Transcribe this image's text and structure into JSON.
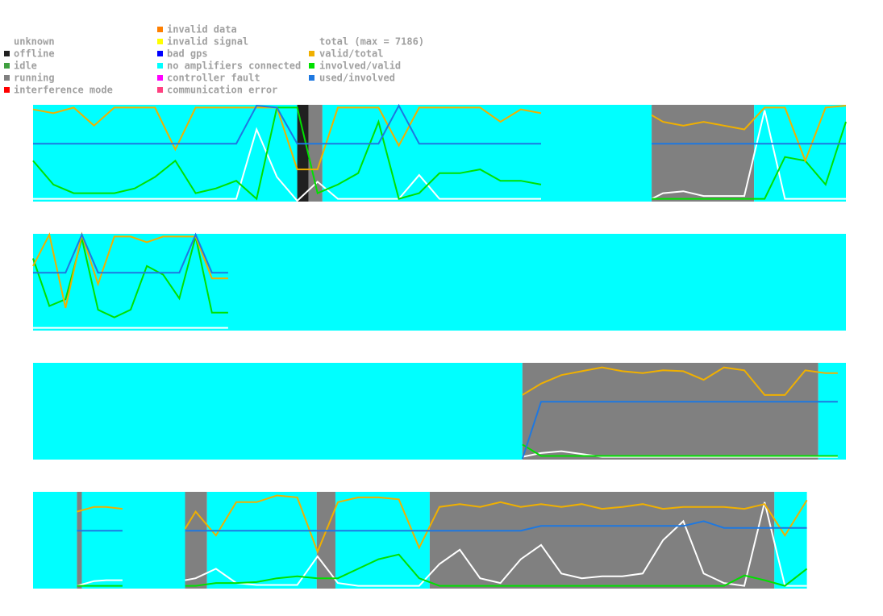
{
  "legend": {
    "status": [
      {
        "label": "unknown",
        "color": "#ffffff"
      },
      {
        "label": "offline",
        "color": "#202020"
      },
      {
        "label": "idle",
        "color": "#40a040"
      },
      {
        "label": "running",
        "color": "#808080"
      },
      {
        "label": "interference mode",
        "color": "#ff0000"
      },
      {
        "label": "invalid data",
        "color": "#ff7f00"
      },
      {
        "label": "invalid signal",
        "color": "#ffff00"
      },
      {
        "label": "bad gps",
        "color": "#0000ff"
      },
      {
        "label": "no amplifiers connected",
        "color": "#00ffff"
      },
      {
        "label": "controller fault",
        "color": "#ff00ff"
      },
      {
        "label": "communication error",
        "color": "#ff4080"
      }
    ],
    "metrics": [
      {
        "label": "total (max = 7186)",
        "color": "#ffffff"
      },
      {
        "label": "valid/total",
        "color": "#f0b000"
      },
      {
        "label": "involved/valid",
        "color": "#00e000"
      },
      {
        "label": "used/involved",
        "color": "#1e78e0"
      }
    ]
  },
  "strips": [
    {
      "segments": [
        {
          "status": 8,
          "start": 0,
          "end": 32.5
        },
        {
          "status": 1,
          "start": 32.5,
          "end": 33.9
        },
        {
          "status": 3,
          "start": 33.9,
          "end": 35.6
        },
        {
          "status": 8,
          "start": 35.6,
          "end": 76.1
        },
        {
          "status": 3,
          "start": 76.1,
          "end": 88.7
        },
        {
          "status": 8,
          "start": 88.7,
          "end": 100
        }
      ],
      "t": [
        0,
        2.5,
        5,
        7.5,
        10,
        12.5,
        15,
        17.5,
        20,
        22.5,
        25,
        27.5,
        30,
        32.5,
        35,
        37.5,
        40,
        42.5,
        45,
        47.5,
        50,
        52.5,
        55,
        57.5,
        60,
        62.5,
        70,
        76.1,
        77.5,
        80,
        82.5,
        85,
        87.5,
        90,
        92.5,
        95,
        97.5,
        100
      ],
      "series": [
        [
          0.02,
          0.02,
          0.02,
          0.02,
          0.02,
          0.02,
          0.02,
          0.02,
          0.02,
          0.02,
          0.02,
          0.75,
          0.25,
          0,
          0.2,
          0.02,
          0.02,
          0.02,
          0.02,
          0.27,
          0.02,
          0.02,
          0.02,
          0.02,
          0.02,
          0.02,
          null,
          0.02,
          0.08,
          0.1,
          0.05,
          0.05,
          0.05,
          0.95,
          0.02,
          0.02,
          0.02,
          0.02
        ],
        [
          0.96,
          0.92,
          0.98,
          0.79,
          0.98,
          0.98,
          0.98,
          0.54,
          0.98,
          0.98,
          0.98,
          0.98,
          0.98,
          0.33,
          0.33,
          0.98,
          0.98,
          0.98,
          0.58,
          0.98,
          0.98,
          0.98,
          0.98,
          0.83,
          0.96,
          0.92,
          null,
          0.9,
          0.83,
          0.79,
          0.83,
          0.79,
          0.75,
          0.98,
          0.98,
          0.42,
          0.98,
          1
        ],
        [
          0.42,
          0.17,
          0.08,
          0.08,
          0.08,
          0.13,
          0.25,
          0.42,
          0.08,
          0.13,
          0.21,
          0.02,
          0.98,
          0.98,
          0.08,
          0.17,
          0.29,
          0.83,
          0.02,
          0.08,
          0.29,
          0.29,
          0.33,
          0.21,
          0.21,
          0.17,
          null,
          0.02,
          0.02,
          0.02,
          0.02,
          0.02,
          0.02,
          0.02,
          0.46,
          0.42,
          0.17,
          0.83
        ],
        [
          0.6,
          0.6,
          0.6,
          0.6,
          0.6,
          0.6,
          0.6,
          0.6,
          0.6,
          0.6,
          0.6,
          1,
          0.98,
          0.6,
          0.6,
          0.6,
          0.6,
          0.6,
          1,
          0.6,
          0.6,
          0.6,
          0.6,
          0.6,
          0.6,
          0.6,
          null,
          0.6,
          0.6,
          0.6,
          0.6,
          0.6,
          0.6,
          0.6,
          0.6,
          0.6,
          0.6,
          0.6
        ]
      ]
    },
    {
      "segments": [
        {
          "status": 8,
          "start": 0,
          "end": 100
        }
      ],
      "t": [
        0,
        2,
        4,
        6,
        8,
        10,
        12,
        14,
        16,
        18,
        20,
        22,
        24
      ],
      "series": [
        [
          0.02,
          0.02,
          0.02,
          0.02,
          0.02,
          0.02,
          0.02,
          0.02,
          0.02,
          0.02,
          0.02,
          0.02,
          0.02
        ],
        [
          0.67,
          1,
          0.23,
          1,
          0.48,
          0.98,
          0.98,
          0.92,
          0.98,
          0.98,
          0.98,
          0.54,
          0.54
        ],
        [
          0.75,
          0.25,
          0.32,
          0.96,
          0.21,
          0.13,
          0.21,
          0.67,
          0.58,
          0.33,
          0.98,
          0.18,
          0.18
        ],
        [
          0.6,
          0.6,
          0.6,
          1,
          0.6,
          0.6,
          0.6,
          0.6,
          0.6,
          0.6,
          1,
          0.6,
          0.6
        ]
      ]
    },
    {
      "segments": [
        {
          "status": 8,
          "start": 0,
          "end": 60.2
        },
        {
          "status": 3,
          "start": 60.2,
          "end": 96.6
        },
        {
          "status": 8,
          "start": 96.6,
          "end": 100
        }
      ],
      "t": [
        60.2,
        62.5,
        65,
        67.5,
        70,
        72.5,
        75,
        77.5,
        80,
        82.5,
        85,
        87.5,
        90,
        92.5,
        95,
        97.5,
        99
      ],
      "series": [
        [
          0.02,
          0.06,
          0.08,
          0.05,
          0.02,
          0.02,
          0.02,
          0.02,
          0.02,
          0.02,
          0.02,
          0.02,
          0.02,
          0.02,
          0.02,
          0.02,
          0.02
        ],
        [
          0.67,
          0.79,
          0.88,
          0.92,
          0.96,
          0.92,
          0.9,
          0.93,
          0.92,
          0.83,
          0.96,
          0.93,
          0.67,
          0.67,
          0.93,
          0.9,
          0.9
        ],
        [
          0.15,
          0.03,
          0.03,
          0.03,
          0.03,
          0.03,
          0.03,
          0.03,
          0.03,
          0.03,
          0.03,
          0.03,
          0.03,
          0.03,
          0.03,
          0.03,
          0.03
        ],
        [
          0,
          0.6,
          0.6,
          0.6,
          0.6,
          0.6,
          0.6,
          0.6,
          0.6,
          0.6,
          0.6,
          0.6,
          0.6,
          0.6,
          0.6,
          0.6,
          0.6
        ]
      ]
    },
    {
      "segments": [
        {
          "status": 8,
          "start": 0,
          "end": 5.4
        },
        {
          "status": 3,
          "start": 5.4,
          "end": 6
        },
        {
          "status": 8,
          "start": 6,
          "end": 18.7
        },
        {
          "status": 3,
          "start": 18.7,
          "end": 21.4
        },
        {
          "status": 8,
          "start": 21.4,
          "end": 34.9
        },
        {
          "status": 3,
          "start": 34.9,
          "end": 37.2
        },
        {
          "status": 8,
          "start": 37.2,
          "end": 48.8
        },
        {
          "status": 3,
          "start": 48.8,
          "end": 91.2
        },
        {
          "status": 8,
          "start": 91.2,
          "end": 95.2
        }
      ],
      "t": [
        5.4,
        7.5,
        9,
        11,
        15,
        18.7,
        20,
        22.5,
        25,
        27.5,
        30,
        32.5,
        35,
        37.5,
        40,
        42.5,
        45,
        47.5,
        50,
        52.5,
        55,
        57.5,
        60,
        62.5,
        65,
        67.5,
        70,
        72.5,
        75,
        77.5,
        80,
        82.5,
        85,
        87.5,
        90,
        92.5,
        95.2
      ],
      "series": [
        [
          0.02,
          0.07,
          0.08,
          0.08,
          null,
          0.08,
          0.1,
          0.2,
          0.05,
          0.03,
          0.03,
          0.03,
          0.33,
          0.05,
          0.02,
          0.02,
          0.02,
          0.02,
          0.25,
          0.4,
          0.1,
          0.05,
          0.3,
          0.45,
          0.15,
          0.1,
          0.12,
          0.12,
          0.15,
          0.5,
          0.7,
          0.15,
          0.05,
          0.02,
          0.9,
          0.02,
          0.02
        ],
        [
          0.8,
          0.85,
          0.85,
          0.83,
          null,
          0.62,
          0.8,
          0.55,
          0.9,
          0.9,
          0.97,
          0.95,
          0.38,
          0.9,
          0.95,
          0.95,
          0.93,
          0.42,
          0.85,
          0.88,
          0.85,
          0.9,
          0.85,
          0.88,
          0.85,
          0.88,
          0.83,
          0.85,
          0.88,
          0.83,
          0.85,
          0.85,
          0.85,
          0.83,
          0.88,
          0.55,
          0.92
        ],
        [
          0.02,
          0.02,
          0.02,
          0.02,
          null,
          0.02,
          0.02,
          0.05,
          0.05,
          0.06,
          0.1,
          0.12,
          0.1,
          0.1,
          0.2,
          0.3,
          0.35,
          0.1,
          0.02,
          0.02,
          0.02,
          0.02,
          0.02,
          0.02,
          0.02,
          0.02,
          0.02,
          0.02,
          0.02,
          0.02,
          0.02,
          0.02,
          0.02,
          0.13,
          0.08,
          0.02,
          0.2
        ],
        [
          0.6,
          0.6,
          0.6,
          0.6,
          null,
          0.6,
          0.6,
          0.6,
          0.6,
          0.6,
          0.6,
          0.6,
          0.6,
          0.6,
          0.6,
          0.6,
          0.6,
          0.6,
          0.6,
          0.6,
          0.6,
          0.6,
          0.6,
          0.65,
          0.65,
          0.65,
          0.65,
          0.65,
          0.65,
          0.65,
          0.65,
          0.7,
          0.63,
          0.63,
          0.63,
          0.63,
          0.63
        ]
      ]
    }
  ]
}
